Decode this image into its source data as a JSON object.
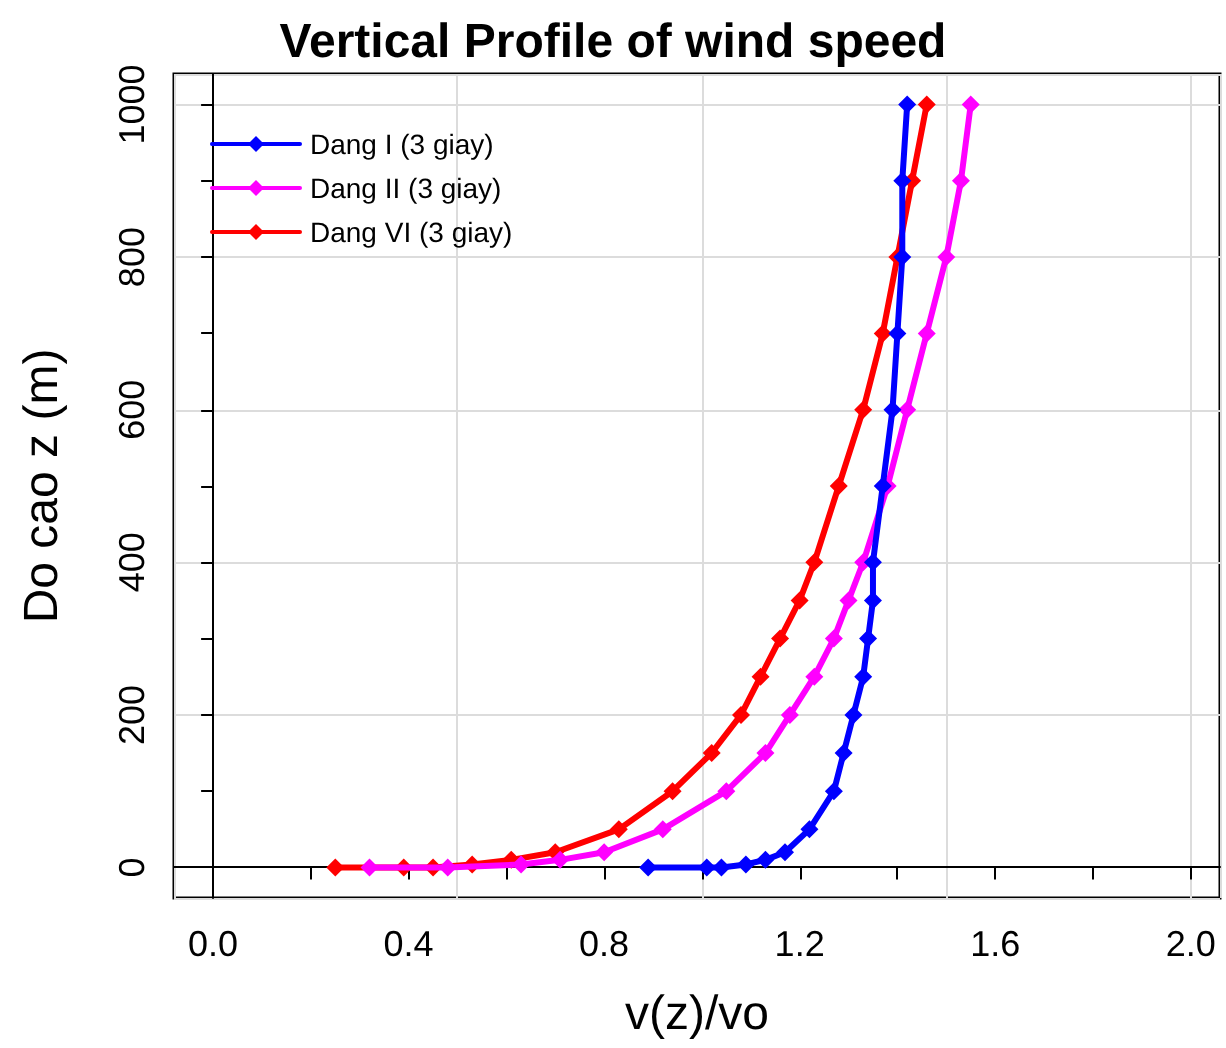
{
  "chart_data": {
    "type": "line",
    "title": "Vertical Profile of wind speed",
    "xlabel": "v(z)/vo",
    "ylabel": "Do cao z (m)",
    "series": [
      {
        "name": "Dang I (3 giay)",
        "color": "#0000ff",
        "x": [
          0.89,
          1.01,
          1.04,
          1.09,
          1.13,
          1.17,
          1.22,
          1.27,
          1.29,
          1.31,
          1.33,
          1.34,
          1.35,
          1.35,
          1.37,
          1.39,
          1.4,
          1.41,
          1.41,
          1.42
        ],
        "values": [
          0,
          0,
          0,
          4,
          10,
          20,
          50,
          100,
          150,
          200,
          250,
          300,
          350,
          400,
          500,
          600,
          700,
          800,
          900,
          1000
        ]
      },
      {
        "name": "Dang II (3 giay)",
        "color": "#ff00ff",
        "x": [
          0.32,
          0.48,
          0.63,
          0.71,
          0.8,
          0.92,
          1.05,
          1.13,
          1.18,
          1.23,
          1.27,
          1.3,
          1.33,
          1.38,
          1.42,
          1.46,
          1.5,
          1.53,
          1.55
        ],
        "values": [
          0,
          0,
          4,
          10,
          20,
          50,
          100,
          150,
          200,
          250,
          300,
          350,
          400,
          500,
          600,
          700,
          800,
          900,
          1000
        ]
      },
      {
        "name": "Dang VI (3 giay)",
        "color": "#ff0000",
        "x": [
          0.25,
          0.39,
          0.45,
          0.53,
          0.61,
          0.7,
          0.83,
          0.94,
          1.02,
          1.08,
          1.12,
          1.16,
          1.2,
          1.23,
          1.28,
          1.33,
          1.37,
          1.4,
          1.43,
          1.46
        ],
        "values": [
          0,
          0,
          0,
          4,
          10,
          20,
          50,
          100,
          150,
          200,
          250,
          300,
          350,
          400,
          500,
          600,
          700,
          800,
          900,
          1000
        ]
      }
    ],
    "xlim": [
      -0.08,
      2.06
    ],
    "ylim": [
      -40,
      1040
    ],
    "xticks": [
      "0.0",
      {
        "value": 0.2,
        "label": null
      },
      0.4,
      {
        "value": 0.6,
        "label": null
      },
      0.8,
      {
        "value": 1,
        "label": null
      },
      1.2,
      {
        "value": 1.4,
        "label": null
      },
      1.6,
      {
        "value": 1.8,
        "label": null
      },
      {
        "value": 2,
        "label": "2.0"
      }
    ],
    "yticks": [
      0,
      {
        "value": 100,
        "label": null
      },
      200,
      {
        "value": 300,
        "label": null
      },
      400,
      {
        "value": 500,
        "label": null
      },
      600,
      {
        "value": 700,
        "label": null
      },
      800,
      {
        "value": 900,
        "label": null
      },
      1000
    ],
    "grid": true,
    "legend": "top left",
    "marker": "diamond",
    "line_style": "solid"
  }
}
